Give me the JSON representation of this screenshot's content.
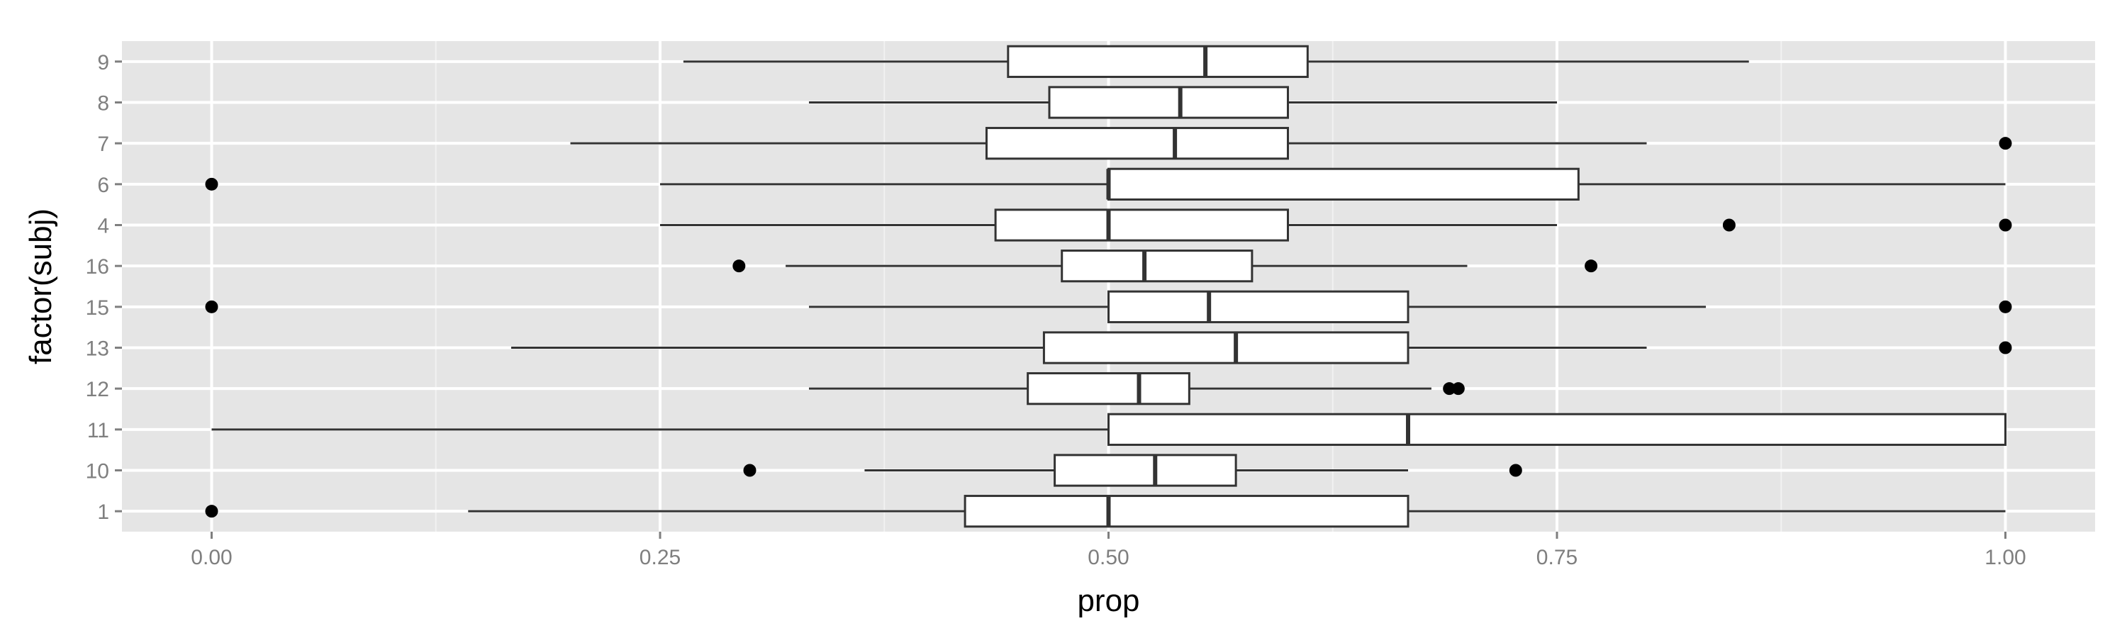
{
  "chart_data": {
    "type": "boxplot",
    "orientation": "horizontal",
    "xlabel": "prop",
    "ylabel": "factor(subj)",
    "xlim": [
      -0.05,
      1.05
    ],
    "x_ticks": [
      0.0,
      0.25,
      0.5,
      0.75,
      1.0
    ],
    "x_tick_labels": [
      "0.00",
      "0.25",
      "0.50",
      "0.75",
      "1.00"
    ],
    "grid": true,
    "colors": {
      "panel": "#e5e5e5",
      "grid_major": "#ffffff",
      "grid_minor": "#f2f2f2",
      "box_fill": "#ffffff",
      "line": "#333333",
      "point": "#000000"
    },
    "categories": [
      "1",
      "10",
      "11",
      "12",
      "13",
      "15",
      "16",
      "4",
      "6",
      "7",
      "8",
      "9"
    ],
    "boxes": [
      {
        "label": "1",
        "whisker_low": 0.143,
        "q1": 0.42,
        "median": 0.5,
        "q3": 0.667,
        "whisker_high": 1.0,
        "outliers": [
          0.0
        ]
      },
      {
        "label": "10",
        "whisker_low": 0.364,
        "q1": 0.47,
        "median": 0.526,
        "q3": 0.571,
        "whisker_high": 0.667,
        "outliers": [
          0.3,
          0.727
        ]
      },
      {
        "label": "11",
        "whisker_low": 0.0,
        "q1": 0.5,
        "median": 0.667,
        "q3": 1.0,
        "whisker_high": 1.0,
        "outliers": []
      },
      {
        "label": "12",
        "whisker_low": 0.333,
        "q1": 0.455,
        "median": 0.517,
        "q3": 0.545,
        "whisker_high": 0.68,
        "outliers": [
          0.69,
          0.695
        ]
      },
      {
        "label": "13",
        "whisker_low": 0.167,
        "q1": 0.464,
        "median": 0.571,
        "q3": 0.667,
        "whisker_high": 0.8,
        "outliers": [
          1.0
        ]
      },
      {
        "label": "15",
        "whisker_low": 0.333,
        "q1": 0.5,
        "median": 0.556,
        "q3": 0.667,
        "whisker_high": 0.833,
        "outliers": [
          0.0,
          1.0
        ]
      },
      {
        "label": "16",
        "whisker_low": 0.32,
        "q1": 0.474,
        "median": 0.52,
        "q3": 0.58,
        "whisker_high": 0.7,
        "outliers": [
          0.294,
          0.769
        ]
      },
      {
        "label": "4",
        "whisker_low": 0.25,
        "q1": 0.437,
        "median": 0.5,
        "q3": 0.6,
        "whisker_high": 0.75,
        "outliers": [
          0.846,
          1.0
        ]
      },
      {
        "label": "6",
        "whisker_low": 0.25,
        "q1": 0.5,
        "median": 0.5,
        "q3": 0.762,
        "whisker_high": 1.0,
        "outliers": [
          0.0
        ]
      },
      {
        "label": "7",
        "whisker_low": 0.2,
        "q1": 0.432,
        "median": 0.537,
        "q3": 0.6,
        "whisker_high": 0.8,
        "outliers": [
          1.0
        ]
      },
      {
        "label": "8",
        "whisker_low": 0.333,
        "q1": 0.467,
        "median": 0.54,
        "q3": 0.6,
        "whisker_high": 0.75,
        "outliers": []
      },
      {
        "label": "9",
        "whisker_low": 0.263,
        "q1": 0.444,
        "median": 0.554,
        "q3": 0.611,
        "whisker_high": 0.857,
        "outliers": []
      }
    ]
  }
}
